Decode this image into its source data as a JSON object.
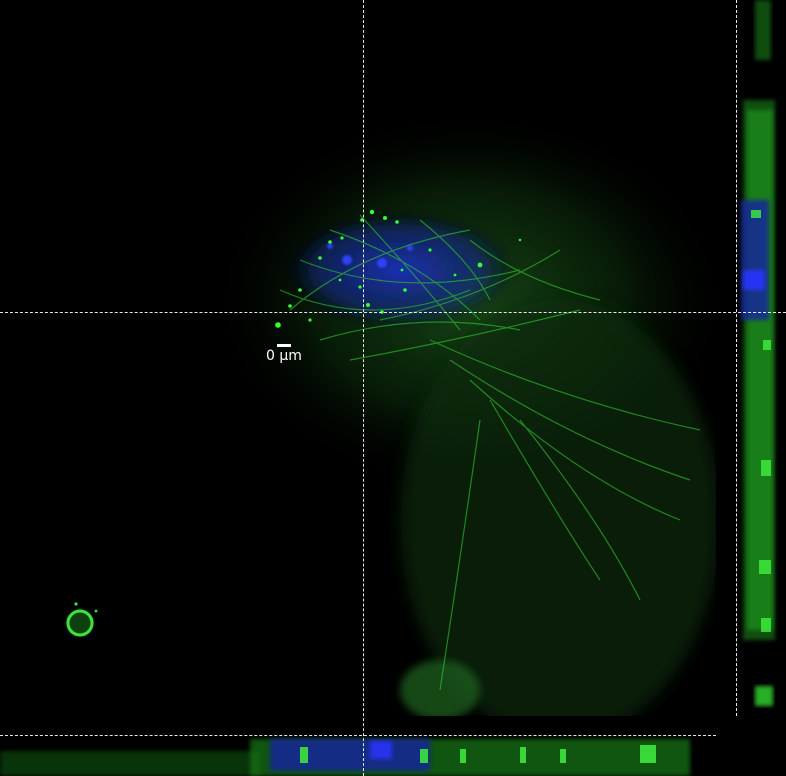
{
  "image": {
    "kind": "confocal-orthogonal-views",
    "channels": [
      {
        "name": "green",
        "color": "#22dd22"
      },
      {
        "name": "blue",
        "color": "#2233ff"
      }
    ],
    "crosshair_color": "#e8e8e8"
  },
  "scale_bar": {
    "label": "0 µm"
  }
}
